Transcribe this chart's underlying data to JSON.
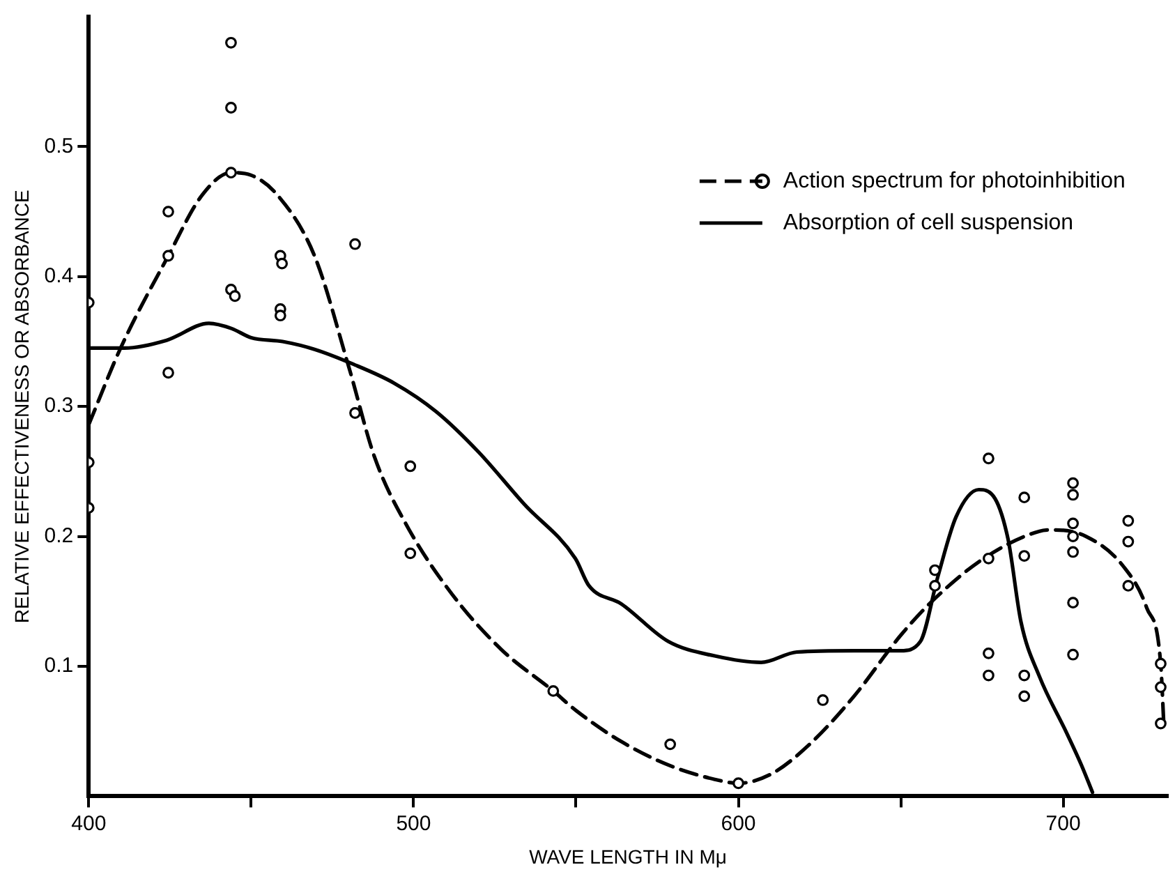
{
  "chart_data": {
    "type": "scatter",
    "xlabel": "WAVE LENGTH IN Mμ",
    "ylabel": "RELATIVE EFFECTIVENESS OR ABSORBANCE",
    "xlim": [
      400,
      732
    ],
    "xticks": [
      400,
      {
        "value": 450,
        "label": null
      },
      500,
      {
        "value": 550,
        "label": null
      },
      600,
      {
        "value": 650,
        "label": null
      },
      700
    ],
    "ylim": [
      0,
      0.6
    ],
    "yticks": [
      0.1,
      0.2,
      0.3,
      0.4,
      0.5
    ],
    "grid": false,
    "legend": "top right",
    "series": [
      {
        "type": "scatter",
        "name": "Action spectrum for photoinhibition",
        "color": "#000000",
        "marker": "circle",
        "x": [
          400,
          400,
          400,
          424.5,
          424.5,
          424.5,
          443.8,
          443.8,
          443.8,
          443.8,
          445,
          459,
          459.5,
          459,
          459,
          482,
          482,
          499,
          499,
          543,
          579,
          600,
          626,
          660.5,
          660.5,
          677,
          677,
          677,
          677,
          688,
          688,
          688,
          688,
          703,
          703,
          703,
          703,
          703,
          703,
          703,
          720,
          720,
          720,
          730,
          730,
          730
        ],
        "values": [
          0.38,
          0.257,
          0.222,
          0.45,
          0.416,
          0.326,
          0.58,
          0.53,
          0.48,
          0.39,
          0.385,
          0.416,
          0.41,
          0.375,
          0.37,
          0.425,
          0.295,
          0.254,
          0.187,
          0.081,
          0.04,
          0.01,
          0.074,
          0.174,
          0.162,
          0.26,
          0.183,
          0.11,
          0.093,
          0.23,
          0.185,
          0.093,
          0.077,
          0.241,
          0.232,
          0.21,
          0.2,
          0.188,
          0.149,
          0.109,
          0.212,
          0.196,
          0.162,
          0.102,
          0.084,
          0.056
        ]
      },
      {
        "type": "line",
        "color": "#000000",
        "line_style": "dashed",
        "x": [
          400,
          410,
          424.5,
          435,
          443.8,
          450,
          458,
          469.5,
          480,
          488,
          498,
          512,
          527,
          543,
          550,
          564,
          578.5,
          592.7,
          600,
          610,
          621.5,
          635.6,
          650,
          660,
          675.5,
          692.7,
          697,
          707,
          718.5,
          725.7,
          730,
          731
        ],
        "values": [
          0.286,
          0.346,
          0.416,
          0.463,
          0.48,
          0.478,
          0.463,
          0.416,
          0.331,
          0.261,
          0.208,
          0.155,
          0.113,
          0.081,
          0.066,
          0.042,
          0.024,
          0.013,
          0.01,
          0.017,
          0.039,
          0.077,
          0.124,
          0.151,
          0.183,
          0.204,
          0.205,
          0.2,
          0.177,
          0.145,
          0.102,
          0.053
        ]
      },
      {
        "type": "line",
        "name": "Absorption of cell suspension",
        "color": "#000000",
        "line_style": "solid",
        "x": [
          400,
          411,
          424,
          437,
          444,
          450,
          459.7,
          469.5,
          481,
          494,
          507,
          520,
          534,
          549.8,
          554,
          564,
          578.5,
          592.7,
          607,
          618,
          635.6,
          650,
          656,
          661.4,
          667,
          674,
          678.5,
          683,
          687,
          692.7,
          701,
          705.6,
          709
        ],
        "values": [
          0.345,
          0.345,
          0.351,
          0.364,
          0.36,
          0.353,
          0.35,
          0.344,
          0.333,
          0.318,
          0.296,
          0.265,
          0.225,
          0.183,
          0.162,
          0.148,
          0.119,
          0.108,
          0.103,
          0.111,
          0.112,
          0.112,
          0.119,
          0.169,
          0.215,
          0.236,
          0.231,
          0.198,
          0.134,
          0.092,
          0.049,
          0.024,
          0.003
        ]
      }
    ]
  }
}
